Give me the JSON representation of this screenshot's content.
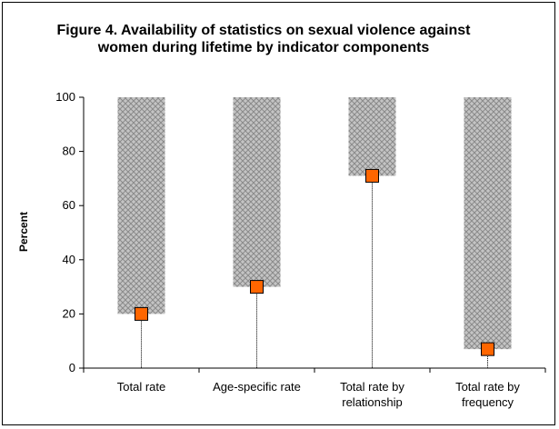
{
  "chart_data": {
    "type": "bar",
    "title": "Figure 4. Availability of statistics on sexual violence against women during lifetime by indicator components",
    "ylabel": "Percent",
    "xlabel": "",
    "ylim": [
      0,
      100
    ],
    "yticks": [
      0,
      20,
      40,
      60,
      80,
      100
    ],
    "categories": [
      [
        "Total rate"
      ],
      [
        "Age-specific rate"
      ],
      [
        "Total rate by",
        "relationship"
      ],
      [
        "Total rate by",
        "frequency"
      ]
    ],
    "values": [
      20,
      30,
      71,
      7
    ],
    "bar_fill_color": "#b8b8b8",
    "marker_color": "#ff6600",
    "grid": false,
    "legend": "none"
  }
}
